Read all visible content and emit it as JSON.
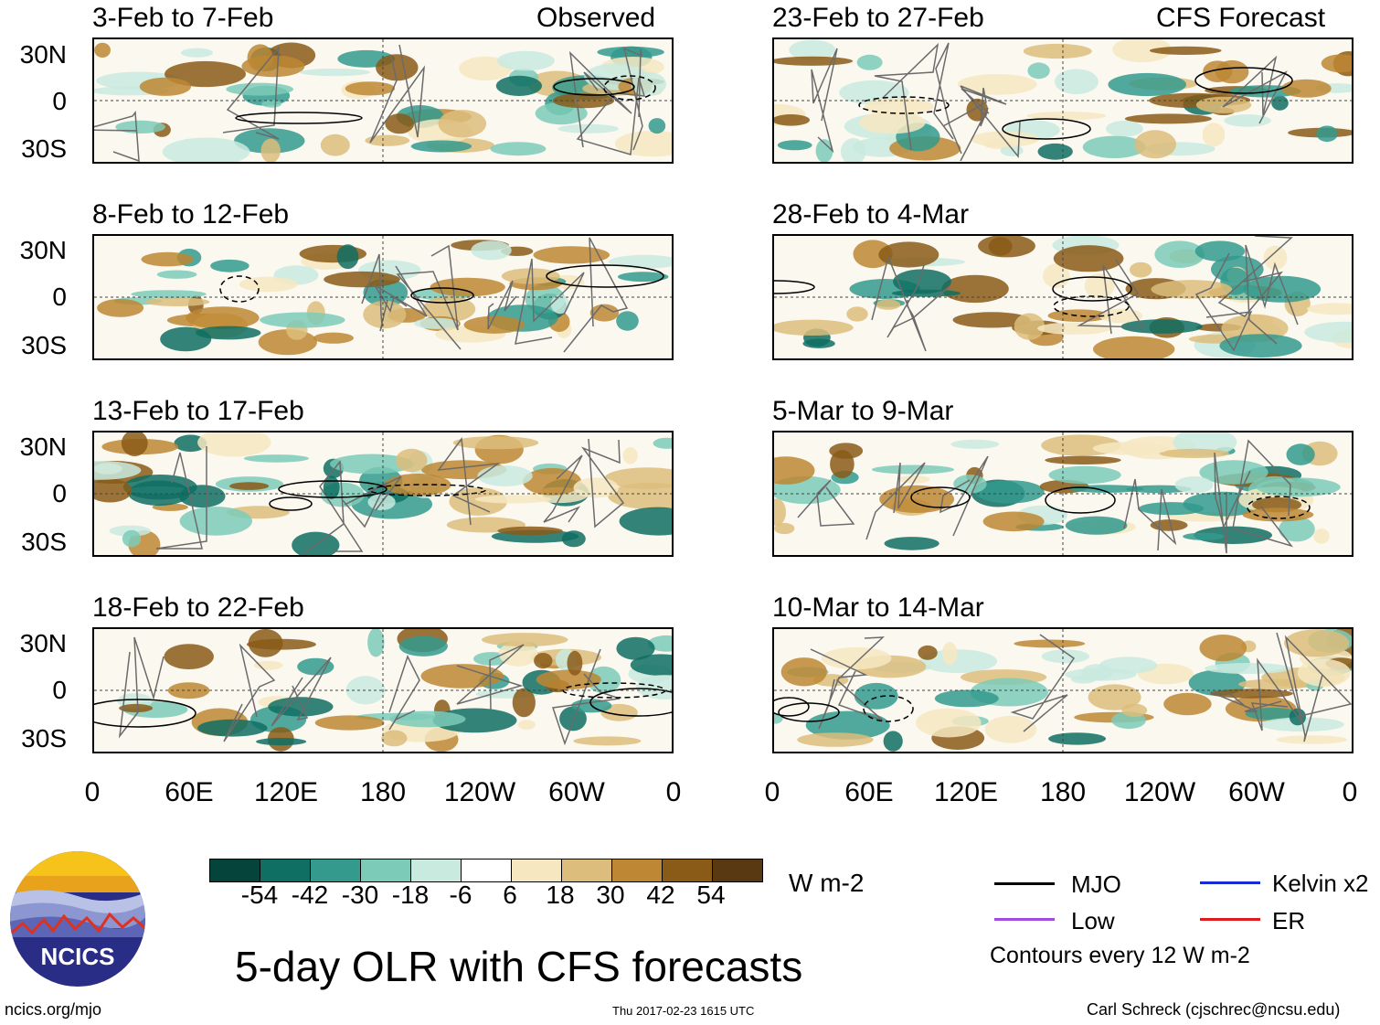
{
  "title": "5-day OLR with CFS forecasts",
  "headers": {
    "observed": "Observed",
    "forecast": "CFS Forecast"
  },
  "observed_panels": [
    {
      "title": "3-Feb to 7-Feb"
    },
    {
      "title": "8-Feb to 12-Feb"
    },
    {
      "title": "13-Feb to 17-Feb"
    },
    {
      "title": "18-Feb to 22-Feb"
    }
  ],
  "forecast_panels": [
    {
      "title": "23-Feb to 27-Feb"
    },
    {
      "title": "28-Feb to 4-Mar"
    },
    {
      "title": "5-Mar to 9-Mar"
    },
    {
      "title": "10-Mar to 14-Mar"
    }
  ],
  "y_ticks": [
    "30N",
    "0",
    "30S"
  ],
  "x_ticks": [
    "0",
    "60E",
    "120E",
    "180",
    "120W",
    "60W",
    "0"
  ],
  "colorbar": {
    "units": "W m-2",
    "labels": [
      "-54",
      "-42",
      "-30",
      "-18",
      "-6",
      "6",
      "18",
      "30",
      "42",
      "54"
    ],
    "colors": [
      "#05443a",
      "#0f6f63",
      "#339a8d",
      "#7ccbb8",
      "#c9eadf",
      "#ffffff",
      "#f6e7c1",
      "#dcbd7b",
      "#bd8733",
      "#8a5a17",
      "#583911"
    ]
  },
  "legend": {
    "items": [
      {
        "label": "MJO",
        "color": "#000000"
      },
      {
        "label": "Kelvin x2",
        "color": "#1a2ad6"
      },
      {
        "label": "Low",
        "color": "#a34de0"
      },
      {
        "label": "ER",
        "color": "#e01b1b"
      }
    ],
    "note": "Contours every 12 W m-2"
  },
  "logo_text": "NCICS",
  "footer": {
    "url": "ncics.org/mjo",
    "timestamp": "Thu 2017-02-23 1615 UTC",
    "author": "Carl Schreck (cjschrec@ncsu.edu)"
  }
}
